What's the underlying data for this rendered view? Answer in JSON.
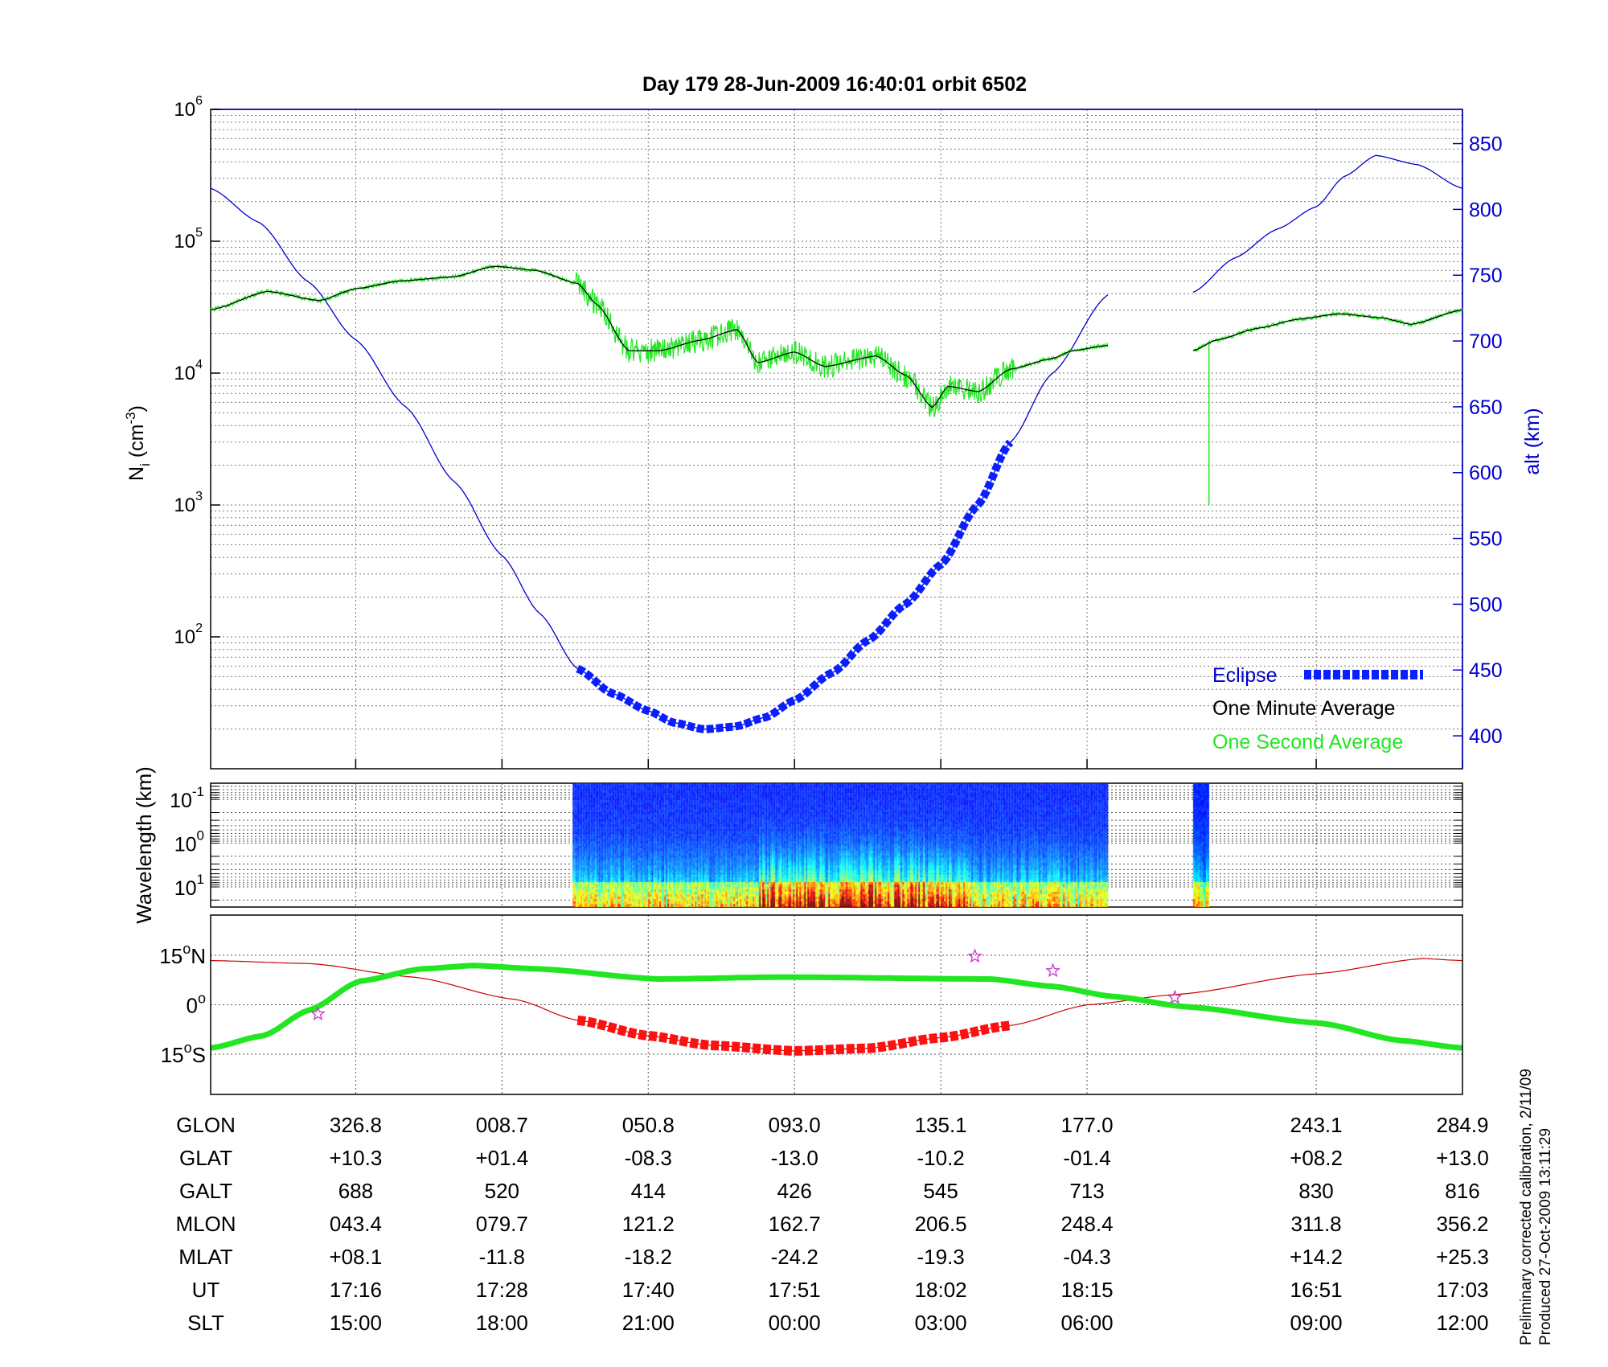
{
  "title": "Day 179  28-Jun-2009 16:40:01   orbit 6502",
  "colors": {
    "alt": "#0000cc",
    "eclipse": "#0a1fff",
    "minute": "#000000",
    "second": "#22e622",
    "track": "#22e622",
    "orbit": "#cc0000",
    "eclipse_track": "#ff1010",
    "star": "#cc33cc"
  },
  "footer": {
    "line1": "Preliminary corrected calibration, 2/11/09",
    "line2": "Produced 27-Oct-2009 13:11:29"
  },
  "chart_data": [
    {
      "type": "line",
      "name": "ion-density-altitude",
      "xlabel": "",
      "x_units": "minutes from plot start",
      "xlim": [
        0,
        102.7
      ],
      "ylabel": {
        "main": "N",
        "sub": "i",
        "unit_open": " (cm",
        "sup": "-3",
        "unit_close": ")"
      },
      "y_scale": "log",
      "ylim_log10": [
        1,
        6
      ],
      "y_ticks": [
        {
          "base": "10",
          "exp": "6",
          "v": 6
        },
        {
          "base": "10",
          "exp": "5",
          "v": 5
        },
        {
          "base": "10",
          "exp": "4",
          "v": 4
        },
        {
          "base": "10",
          "exp": "3",
          "v": 3
        },
        {
          "base": "10",
          "exp": "2",
          "v": 2
        }
      ],
      "y2label": "alt (km)",
      "y2lim": [
        375,
        876
      ],
      "y2_ticks": [
        "400",
        "450",
        "500",
        "550",
        "600",
        "650",
        "700",
        "750",
        "800",
        "850"
      ],
      "legend": {
        "position": "bottom-right",
        "entries": [
          "Eclipse",
          "One Minute Average",
          "One Second Average"
        ]
      },
      "altitude": [
        [
          0,
          816
        ],
        [
          4,
          790
        ],
        [
          8,
          745
        ],
        [
          11.9,
          701
        ],
        [
          16,
          650
        ],
        [
          20,
          593
        ],
        [
          23.9,
          537
        ],
        [
          27,
          493
        ],
        [
          30.1,
          451
        ],
        [
          33,
          432
        ],
        [
          35.9,
          419
        ],
        [
          38,
          410
        ],
        [
          40.5,
          405
        ],
        [
          43,
          407
        ],
        [
          45.5,
          414
        ],
        [
          47.9,
          427
        ],
        [
          51,
          448
        ],
        [
          54,
          473
        ],
        [
          57,
          500
        ],
        [
          59.9,
          530
        ],
        [
          62.9,
          575
        ],
        [
          65.6,
          623
        ],
        [
          69,
          675
        ],
        [
          73.6,
          735
        ],
        [
          null,
          null
        ],
        [
          80.6,
          737
        ],
        [
          84,
          763
        ],
        [
          87.5,
          785
        ],
        [
          90.7,
          802
        ],
        [
          93,
          825
        ],
        [
          95.6,
          841
        ],
        [
          99,
          834
        ],
        [
          102.7,
          816
        ]
      ],
      "eclipse_range": [
        30.1,
        65.6
      ],
      "ni_one_minute_log10": [
        [
          0,
          4.48
        ],
        [
          4.7,
          4.62
        ],
        [
          8.9,
          4.55
        ],
        [
          11.9,
          4.64
        ],
        [
          15.7,
          4.7
        ],
        [
          19.9,
          4.73
        ],
        [
          23.3,
          4.81
        ],
        [
          26.6,
          4.78
        ],
        [
          30.1,
          4.68
        ],
        [
          31.7,
          4.52
        ],
        [
          34.3,
          4.17
        ],
        [
          36.8,
          4.17
        ],
        [
          40.2,
          4.25
        ],
        [
          43.2,
          4.33
        ],
        [
          44.9,
          4.08
        ],
        [
          47.9,
          4.16
        ],
        [
          50.4,
          4.05
        ],
        [
          54.6,
          4.13
        ],
        [
          57.1,
          3.98
        ],
        [
          59.2,
          3.74
        ],
        [
          60.5,
          3.9
        ],
        [
          63.0,
          3.86
        ],
        [
          65.6,
          4.03
        ],
        [
          69.0,
          4.11
        ],
        [
          70.7,
          4.17
        ],
        [
          73.6,
          4.21
        ],
        [
          null,
          null
        ],
        [
          80.6,
          4.17
        ],
        [
          82.5,
          4.25
        ],
        [
          85.9,
          4.34
        ],
        [
          89.3,
          4.41
        ],
        [
          92.6,
          4.45
        ],
        [
          96.0,
          4.42
        ],
        [
          98.5,
          4.37
        ],
        [
          102.7,
          4.48
        ]
      ],
      "ni_one_second_noise_log10": {
        "quiet": 0.015,
        "active_range": [
          30,
          66
        ],
        "active": 0.09
      },
      "ni_one_second_spike": {
        "x": 81.9,
        "min_log10": 3.0
      },
      "x_ticks_minutes": [
        11.9,
        23.9,
        35.9,
        47.9,
        59.9,
        71.9,
        90.7,
        102.7
      ]
    },
    {
      "type": "heatmap",
      "name": "wavelength-spectrogram",
      "ylabel": "Wavelength (km)",
      "y_scale": "log",
      "ylim_log10": [
        -1.37,
        1.46
      ],
      "y_ticks": [
        {
          "base": "10",
          "exp": "-1",
          "v": -1
        },
        {
          "base": "10",
          "exp": "0",
          "v": 0
        },
        {
          "base": "10",
          "exp": "1",
          "v": 1
        }
      ],
      "data_ranges_minutes": [
        [
          29.7,
          73.5
        ],
        [
          80.6,
          81.9
        ]
      ],
      "activity_peak_minutes": [
        45,
        62
      ],
      "colormap": "jet"
    },
    {
      "type": "line",
      "name": "ground-track-map",
      "ylim_lat": [
        -27.2,
        27.2
      ],
      "y_ticks": [
        {
          "num": "15",
          "deg": "o",
          "hemi": "N",
          "v": 15
        },
        {
          "num": "0",
          "deg": "o",
          "hemi": "",
          "v": 0
        },
        {
          "num": "15",
          "deg": "o",
          "hemi": "S",
          "v": -15
        }
      ],
      "track_lat": [
        [
          0,
          -13.1
        ],
        [
          4.3,
          -9.4
        ],
        [
          8.1,
          -1.6
        ],
        [
          12.3,
          7.2
        ],
        [
          17.4,
          10.9
        ],
        [
          21.6,
          11.9
        ],
        [
          26.7,
          10.9
        ],
        [
          36.8,
          7.8
        ],
        [
          47,
          8.4
        ],
        [
          63.9,
          7.8
        ],
        [
          69,
          5.6
        ],
        [
          74.1,
          2.5
        ],
        [
          80,
          -0.6
        ],
        [
          91,
          -5.6
        ],
        [
          97.7,
          -10.9
        ],
        [
          102.7,
          -13.1
        ]
      ],
      "orbit_lat": [
        [
          0,
          13.4
        ],
        [
          8.1,
          12.5
        ],
        [
          16.6,
          8.4
        ],
        [
          25,
          1.6
        ],
        [
          30.1,
          -4.7
        ],
        [
          35.9,
          -9.4
        ],
        [
          41,
          -12.3
        ],
        [
          47.9,
          -14
        ],
        [
          54,
          -13.2
        ],
        [
          59.9,
          -10
        ],
        [
          65.6,
          -6.3
        ],
        [
          72,
          0
        ],
        [
          79.2,
          3.1
        ],
        [
          90.7,
          9.4
        ],
        [
          99.4,
          14
        ],
        [
          102.7,
          13.4
        ]
      ],
      "eclipse_range": [
        30.1,
        65.6
      ],
      "stars": [
        [
          8.8,
          -2.8
        ],
        [
          62.7,
          14.7
        ],
        [
          69.1,
          10.3
        ],
        [
          79.1,
          2.2
        ]
      ]
    }
  ],
  "table": {
    "labels": [
      "GLON",
      "GLAT",
      "GALT",
      "MLON",
      "MLAT",
      "UT",
      "SLT"
    ],
    "columns": [
      [
        "326.8",
        "+10.3",
        "688",
        "043.4",
        "+08.1",
        "17:16",
        "15:00"
      ],
      [
        "008.7",
        "+01.4",
        "520",
        "079.7",
        "-11.8",
        "17:28",
        "18:00"
      ],
      [
        "050.8",
        "-08.3",
        "414",
        "121.2",
        "-18.2",
        "17:40",
        "21:00"
      ],
      [
        "093.0",
        "-13.0",
        "426",
        "162.7",
        "-24.2",
        "17:51",
        "00:00"
      ],
      [
        "135.1",
        "-10.2",
        "545",
        "206.5",
        "-19.3",
        "18:02",
        "03:00"
      ],
      [
        "177.0",
        "-01.4",
        "713",
        "248.4",
        "-04.3",
        "18:15",
        "06:00"
      ],
      [
        "243.1",
        "+08.2",
        "830",
        "311.8",
        "+14.2",
        "16:51",
        "09:00"
      ],
      [
        "284.9",
        "+13.0",
        "816",
        "356.2",
        "+25.3",
        "17:03",
        "12:00"
      ]
    ]
  }
}
